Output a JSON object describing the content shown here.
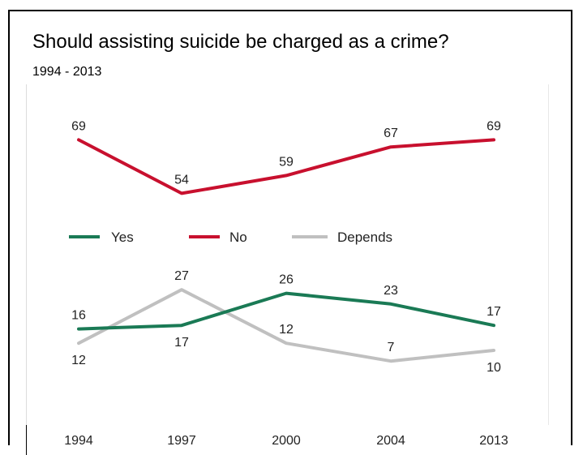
{
  "title": "Should assisting suicide be charged as a crime?",
  "subtitle": "1994 - 2013",
  "chart_data": {
    "type": "line",
    "title": "Should assisting suicide be charged as a crime?",
    "subtitle": "1994 - 2013",
    "x": [
      "1994",
      "1997",
      "2000",
      "2004",
      "2013"
    ],
    "series": [
      {
        "name": "Yes",
        "color": "#1a7a55",
        "values": [
          16,
          17,
          26,
          23,
          17
        ]
      },
      {
        "name": "No",
        "color": "#c8102e",
        "values": [
          69,
          54,
          59,
          67,
          69
        ]
      },
      {
        "name": "Depends",
        "color": "#c0c0c0",
        "values": [
          12,
          27,
          12,
          7,
          10
        ]
      }
    ],
    "legend_position": "middle-left",
    "grid": false
  }
}
